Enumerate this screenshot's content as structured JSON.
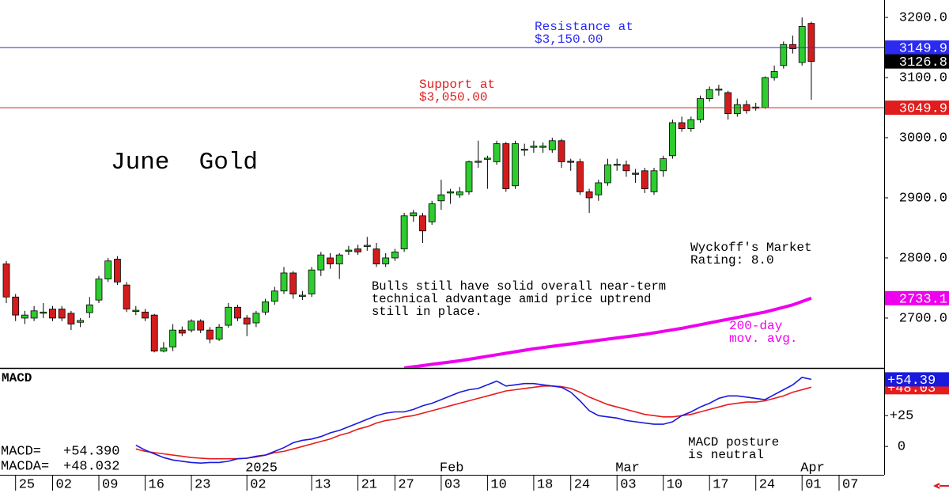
{
  "chart_data": {
    "type": "candlestick",
    "title": "June  Gold",
    "categories": [
      null,
      "25",
      null,
      null,
      null,
      "02",
      null,
      null,
      null,
      null,
      "09",
      null,
      null,
      null,
      null,
      "16",
      null,
      null,
      null,
      null,
      "23",
      null,
      null,
      null,
      null,
      null,
      "02",
      null,
      null,
      null,
      null,
      null,
      null,
      "13",
      null,
      null,
      null,
      null,
      "21",
      null,
      null,
      null,
      "27",
      null,
      null,
      null,
      null,
      "03",
      null,
      null,
      null,
      null,
      "10",
      null,
      null,
      null,
      null,
      "18",
      null,
      null,
      null,
      "24",
      null,
      null,
      null,
      null,
      "03",
      null,
      null,
      null,
      null,
      "10",
      null,
      null,
      null,
      null,
      "17",
      null,
      null,
      null,
      null,
      "24",
      null,
      null,
      null,
      null,
      "01",
      null,
      null,
      null,
      "07"
    ],
    "month_labels": [
      null,
      null,
      null,
      null,
      null,
      null,
      null,
      null,
      null,
      null,
      null,
      null,
      null,
      null,
      null,
      null,
      null,
      null,
      null,
      null,
      null,
      null,
      null,
      null,
      null,
      null,
      "2025",
      null,
      null,
      null,
      null,
      null,
      null,
      null,
      null,
      null,
      null,
      null,
      null,
      null,
      null,
      null,
      null,
      null,
      null,
      null,
      null,
      "Feb",
      null,
      null,
      null,
      null,
      null,
      null,
      null,
      null,
      null,
      null,
      null,
      null,
      null,
      null,
      null,
      null,
      null,
      null,
      "Mar",
      null,
      null,
      null,
      null,
      null,
      null,
      null,
      null,
      null,
      null,
      null,
      null,
      null,
      null,
      null,
      null,
      null,
      null,
      null,
      "Apr",
      null,
      null,
      null,
      null
    ],
    "open": [
      2790,
      2735,
      2700,
      2700,
      2708,
      2715,
      2715,
      2708,
      2693,
      2709,
      2730,
      2765,
      2798,
      2755,
      2711,
      2710,
      2705,
      2645,
      2652,
      2680,
      2680,
      2695,
      2680,
      2665,
      2688,
      2718,
      2700,
      2692,
      2710,
      2728,
      2745,
      2775,
      2736,
      2740,
      2780,
      2800,
      2790,
      2811,
      2815,
      2819,
      2815,
      2790,
      2800,
      2815,
      2870,
      2870,
      2860,
      2895,
      2908,
      2905,
      2910,
      2959,
      2964,
      2960,
      2990,
      2920,
      2979,
      2984,
      2984,
      2980,
      2995,
      2961,
      2960,
      2910,
      2905,
      2925,
      2954,
      2955,
      2941,
      2945,
      2910,
      2945,
      2970,
      3025,
      3015,
      3030,
      3065,
      3079,
      3075,
      3040,
      3055,
      3049,
      3050,
      3100,
      3120,
      3155,
      3125,
      3190,
      null,
      null,
      null
    ],
    "high": [
      2795,
      2740,
      2712,
      2720,
      2725,
      2720,
      2720,
      2712,
      2700,
      2735,
      2770,
      2800,
      2803,
      2760,
      2720,
      2715,
      2707,
      2660,
      2690,
      2686,
      2698,
      2698,
      2685,
      2690,
      2725,
      2722,
      2705,
      2712,
      2732,
      2752,
      2785,
      2778,
      2745,
      2785,
      2810,
      2808,
      2808,
      2820,
      2822,
      2835,
      2825,
      2808,
      2815,
      2875,
      2880,
      2875,
      2895,
      2930,
      2915,
      2918,
      2962,
      2995,
      2970,
      2995,
      2993,
      2995,
      2990,
      2995,
      2992,
      3000,
      2998,
      2965,
      2965,
      2915,
      2930,
      2965,
      2965,
      2962,
      2948,
      2950,
      2950,
      2970,
      3030,
      3035,
      3035,
      3070,
      3085,
      3088,
      3078,
      3065,
      3062,
      3058,
      3102,
      3120,
      3160,
      3170,
      3200,
      3193,
      null,
      null,
      null
    ],
    "low": [
      2725,
      2695,
      2690,
      2695,
      2700,
      2695,
      2695,
      2680,
      2685,
      2700,
      2725,
      2760,
      2755,
      2710,
      2705,
      2695,
      2643,
      2643,
      2645,
      2670,
      2676,
      2675,
      2658,
      2662,
      2684,
      2695,
      2670,
      2685,
      2705,
      2722,
      2740,
      2732,
      2730,
      2735,
      2770,
      2782,
      2765,
      2805,
      2805,
      2812,
      2785,
      2785,
      2795,
      2810,
      2860,
      2825,
      2855,
      2880,
      2890,
      2900,
      2905,
      2950,
      2915,
      2955,
      2910,
      2915,
      2970,
      2975,
      2975,
      2975,
      2950,
      2945,
      2905,
      2875,
      2895,
      2920,
      2945,
      2935,
      2925,
      2908,
      2905,
      2935,
      2965,
      3010,
      3010,
      3025,
      3060,
      3070,
      3030,
      3035,
      3040,
      3045,
      3048,
      3095,
      3115,
      3140,
      3120,
      3063,
      null,
      null,
      null
    ],
    "close": [
      2735,
      2705,
      2705,
      2712,
      2710,
      2700,
      2700,
      2690,
      2696,
      2722,
      2765,
      2795,
      2760,
      2715,
      2713,
      2700,
      2645,
      2650,
      2680,
      2675,
      2695,
      2680,
      2665,
      2685,
      2718,
      2700,
      2690,
      2708,
      2727,
      2745,
      2775,
      2740,
      2738,
      2780,
      2805,
      2790,
      2805,
      2813,
      2810,
      2821,
      2790,
      2800,
      2810,
      2870,
      2875,
      2845,
      2890,
      2905,
      2910,
      2910,
      2960,
      2961,
      2966,
      2990,
      2915,
      2990,
      2981,
      2986,
      2986,
      2995,
      2960,
      2959,
      2910,
      2900,
      2925,
      2955,
      2956,
      2945,
      2939,
      2915,
      2945,
      2965,
      3025,
      3015,
      3030,
      3065,
      3080,
      3081,
      3040,
      3055,
      3045,
      3051,
      3100,
      3110,
      3155,
      3148,
      3185,
      3126.8,
      null,
      null,
      null
    ],
    "up_color": "#2ecc2e",
    "down_color": "#d41c1c",
    "ylim": [
      2617,
      3229
    ],
    "yticks": [
      {
        "value": 2700,
        "label": "2700.0"
      },
      {
        "value": 2800,
        "label": "2800.0"
      },
      {
        "value": 2900,
        "label": "2900.0"
      },
      {
        "value": 3000,
        "label": "3000.0"
      },
      {
        "value": 3100,
        "label": "3100.0"
      },
      {
        "value": 3200,
        "label": "3200.0"
      }
    ],
    "grid": false,
    "levels": [
      {
        "value": 3149.9,
        "color": "#2a2af0"
      },
      {
        "value": 3049.9,
        "color": "#e01c1c"
      }
    ],
    "moving_average": {
      "color": "#ee00ee",
      "label": [
        "200-day",
        "mov. avg."
      ],
      "values": [
        null,
        null,
        null,
        null,
        null,
        null,
        null,
        null,
        null,
        null,
        null,
        null,
        null,
        null,
        null,
        null,
        null,
        null,
        null,
        null,
        null,
        null,
        null,
        null,
        null,
        null,
        null,
        null,
        null,
        null,
        null,
        null,
        null,
        null,
        null,
        null,
        null,
        null,
        null,
        null,
        null,
        null,
        null,
        2617,
        2619,
        2621,
        2623,
        2625,
        2627,
        2629,
        2631.5,
        2634,
        2636.5,
        2639,
        2641.5,
        2644,
        2646.5,
        2649,
        2651,
        2653,
        2655,
        2657,
        2659,
        2661,
        2663,
        2665,
        2667,
        2669,
        2671,
        2673,
        2675.5,
        2678,
        2680.5,
        2683,
        2686,
        2689,
        2692,
        2695,
        2698,
        2701,
        2704,
        2707,
        2710,
        2714,
        2718,
        2722,
        2727.5,
        2733.1,
        null,
        null,
        null
      ]
    },
    "annotations": [
      {
        "lines": [
          "Resistance at",
          "$3,150.00"
        ],
        "color": "#2a2af0"
      },
      {
        "lines": [
          "Support at",
          "$3,050.00"
        ],
        "color": "#e01c1c"
      },
      {
        "lines": [
          "Wyckoff's Market",
          "Rating: 8.0"
        ],
        "color": "#000000"
      },
      {
        "lines": [
          "Bulls still have solid overall near-term",
          "technical advantage amid price uptrend",
          "still in place."
        ],
        "color": "#000000"
      }
    ],
    "macd": {
      "title": "MACD",
      "ylim": [
        -23,
        63
      ],
      "yticks": [
        0,
        {
          "value": 25,
          "label": "+25"
        }
      ],
      "annotation": [
        "MACD posture",
        "is neutral"
      ],
      "series": [
        {
          "name": "MACD=",
          "color": "#1a1adc",
          "readout": "+54.390",
          "last_label": "+54.39",
          "values": [
            null,
            null,
            null,
            null,
            null,
            null,
            null,
            null,
            null,
            null,
            null,
            null,
            null,
            null,
            1,
            -3,
            -6,
            -9,
            -11,
            -12,
            -13,
            -13.5,
            -13,
            -13,
            -12,
            -10,
            -9.5,
            -8,
            -7,
            -4,
            -1,
            3,
            5,
            6,
            8,
            11,
            13,
            16,
            19,
            22,
            25,
            27,
            28,
            28,
            30,
            33,
            35,
            38,
            41,
            44,
            46,
            47,
            50,
            53,
            49,
            50,
            51,
            51,
            50,
            49,
            48,
            44,
            37,
            29,
            25,
            24,
            23,
            21,
            20,
            19,
            18,
            18,
            20,
            25,
            28,
            32,
            35,
            39,
            41,
            41,
            40,
            39,
            38,
            42,
            46,
            50,
            56,
            54.39,
            null,
            null,
            null
          ]
        },
        {
          "name": "MACDA=",
          "color": "#e81c1c",
          "readout": "+48.032",
          "last_label": "+48.03",
          "values": [
            null,
            null,
            null,
            null,
            null,
            null,
            null,
            null,
            null,
            null,
            null,
            null,
            null,
            null,
            -2,
            -4,
            -5,
            -6,
            -7,
            -8,
            -9,
            -9.5,
            -10,
            -10,
            -10,
            -10,
            -9.5,
            -8.5,
            -7,
            -5,
            -4,
            -2,
            0,
            2,
            4,
            6,
            9,
            11,
            14,
            16,
            19,
            21,
            22,
            24,
            25,
            27,
            29,
            31,
            33,
            35,
            37,
            39,
            41,
            43,
            45,
            46,
            47,
            48,
            49,
            49,
            48.5,
            47,
            44,
            40,
            37,
            34,
            32,
            30,
            28,
            26,
            25,
            24,
            24,
            25,
            26,
            28,
            30,
            32,
            34,
            35,
            36,
            36,
            37,
            39,
            41,
            44,
            46,
            48.032,
            null,
            null,
            null
          ]
        }
      ]
    }
  }
}
